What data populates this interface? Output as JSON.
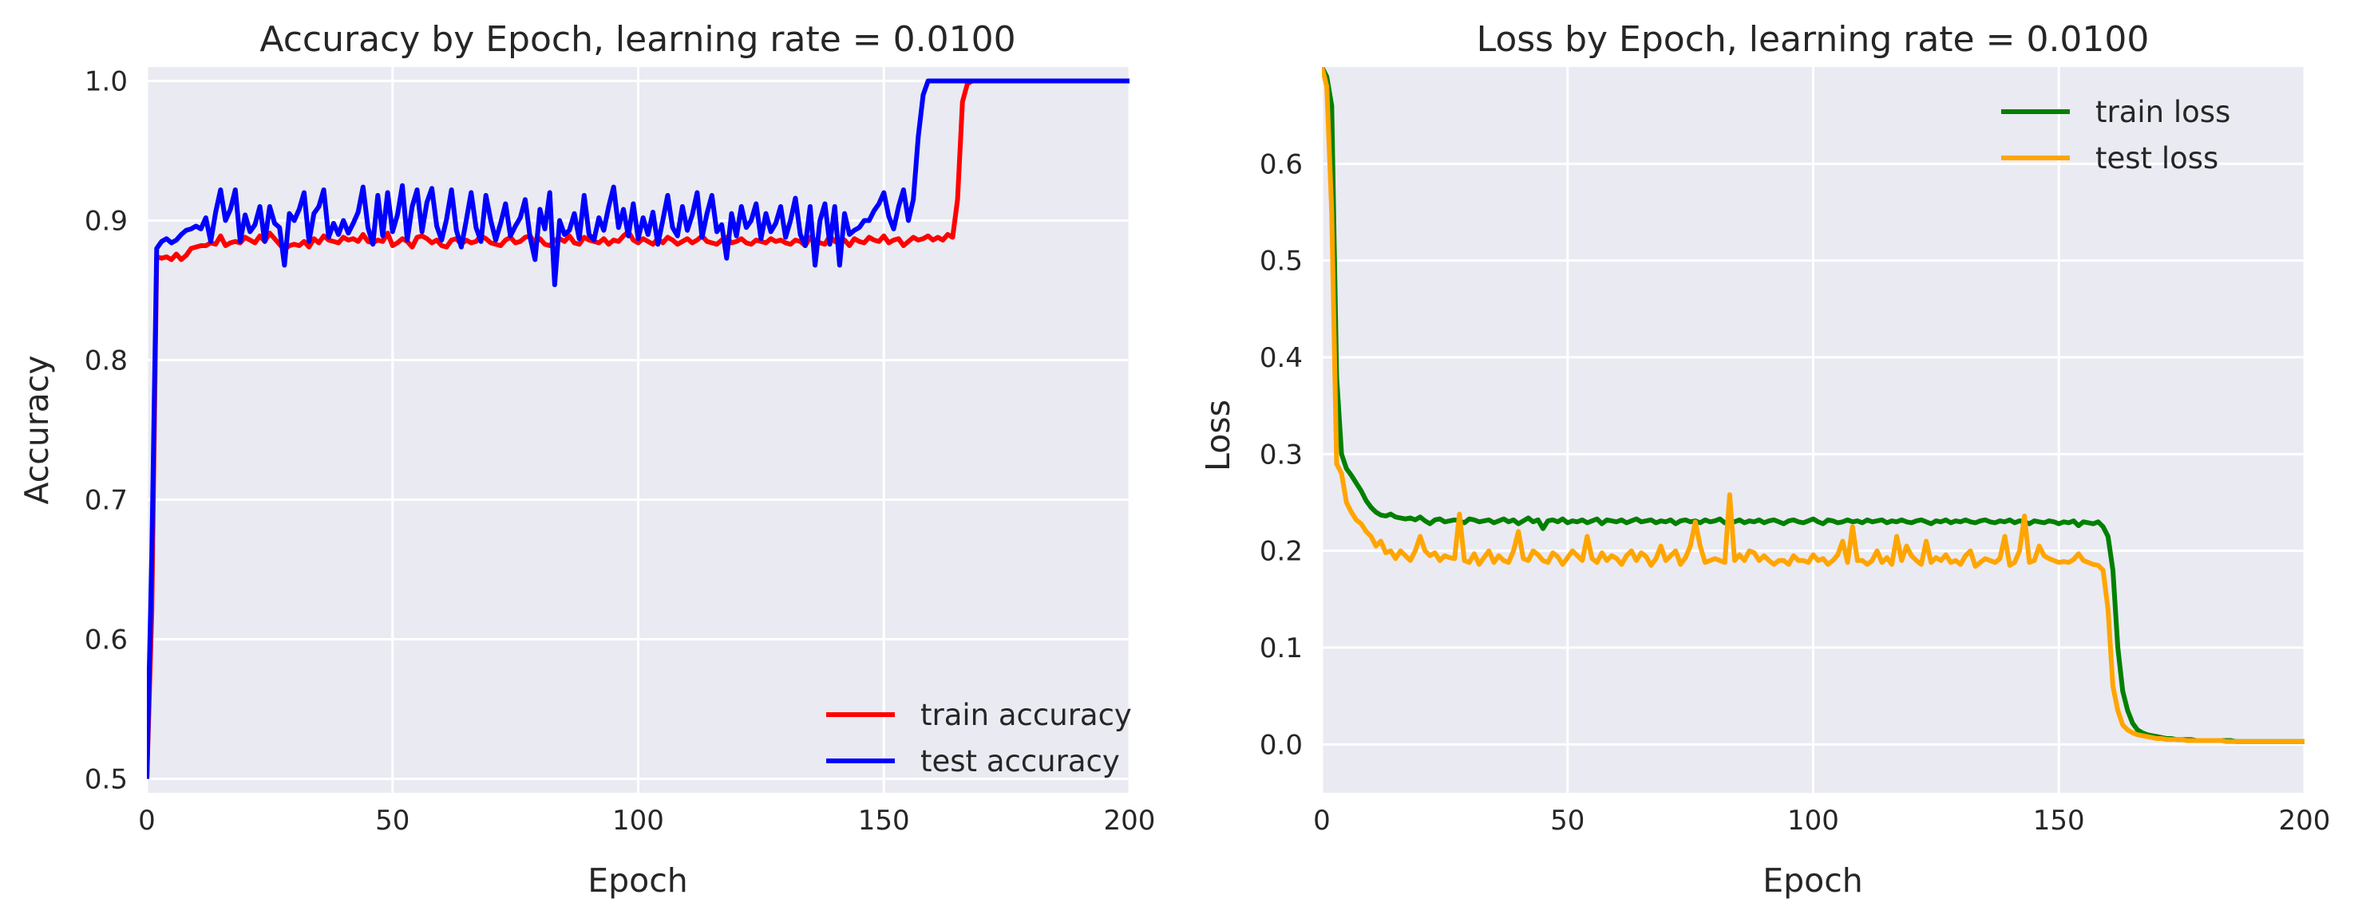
{
  "style": {
    "plot_background": "#eaeaf2",
    "grid_color": "#ffffff",
    "train_accuracy_color": "#ff0000",
    "test_accuracy_color": "#0000ff",
    "train_loss_color": "#008000",
    "test_loss_color": "#ffa500"
  },
  "chart_data": [
    {
      "type": "line",
      "title": "Accuracy by Epoch, learning rate = 0.0100",
      "xlabel": "Epoch",
      "ylabel": "Accuracy",
      "xlim": [
        0,
        200
      ],
      "ylim": [
        0.49,
        1.01
      ],
      "xticks": [
        0,
        50,
        100,
        150,
        200
      ],
      "yticks": [
        0.5,
        0.6,
        0.7,
        0.8,
        0.9,
        1.0
      ],
      "ytick_labels": [
        "0.5",
        "0.6",
        "0.7",
        "0.8",
        "0.9",
        "1.0"
      ],
      "grid": true,
      "legend_position": "lower-right",
      "series": [
        {
          "name": "train accuracy",
          "color": "#ff0000",
          "values": [
            0.5,
            0.62,
            0.874,
            0.873,
            0.874,
            0.872,
            0.876,
            0.872,
            0.875,
            0.88,
            0.881,
            0.882,
            0.882,
            0.884,
            0.883,
            0.889,
            0.882,
            0.884,
            0.885,
            0.884,
            0.888,
            0.886,
            0.884,
            0.889,
            0.885,
            0.891,
            0.887,
            0.883,
            0.879,
            0.882,
            0.883,
            0.882,
            0.885,
            0.881,
            0.887,
            0.884,
            0.889,
            0.886,
            0.885,
            0.884,
            0.888,
            0.886,
            0.887,
            0.885,
            0.89,
            0.885,
            0.884,
            0.886,
            0.885,
            0.891,
            0.882,
            0.884,
            0.887,
            0.885,
            0.881,
            0.888,
            0.889,
            0.887,
            0.884,
            0.886,
            0.882,
            0.881,
            0.886,
            0.887,
            0.883,
            0.886,
            0.884,
            0.885,
            0.889,
            0.887,
            0.884,
            0.883,
            0.882,
            0.886,
            0.888,
            0.884,
            0.885,
            0.888,
            0.889,
            0.884,
            0.887,
            0.883,
            0.882,
            0.886,
            0.887,
            0.885,
            0.889,
            0.884,
            0.883,
            0.888,
            0.886,
            0.885,
            0.884,
            0.887,
            0.883,
            0.886,
            0.885,
            0.889,
            0.892,
            0.886,
            0.884,
            0.887,
            0.885,
            0.883,
            0.887,
            0.884,
            0.888,
            0.886,
            0.883,
            0.885,
            0.887,
            0.884,
            0.886,
            0.889,
            0.885,
            0.884,
            0.883,
            0.886,
            0.888,
            0.884,
            0.885,
            0.887,
            0.884,
            0.883,
            0.886,
            0.885,
            0.884,
            0.887,
            0.885,
            0.886,
            0.884,
            0.883,
            0.886,
            0.885,
            0.882,
            0.888,
            0.886,
            0.884,
            0.883,
            0.889,
            0.885,
            0.884,
            0.886,
            0.882,
            0.887,
            0.885,
            0.884,
            0.888,
            0.886,
            0.885,
            0.889,
            0.884,
            0.886,
            0.887,
            0.882,
            0.885,
            0.888,
            0.886,
            0.887,
            0.889,
            0.886,
            0.888,
            0.886,
            0.89,
            0.888,
            0.915,
            0.985,
            0.998,
            1.0,
            1.0,
            1.0,
            1.0,
            1.0,
            1.0,
            1.0,
            1.0,
            1.0,
            1.0,
            1.0,
            1.0,
            1.0,
            1.0,
            1.0,
            1.0,
            1.0,
            1.0,
            1.0,
            1.0,
            1.0,
            1.0,
            1.0,
            1.0,
            1.0,
            1.0,
            1.0,
            1.0,
            1.0,
            1.0,
            1.0,
            1.0,
            1.0,
            1.0,
            1.0,
            1.0,
            1.0,
            1.0,
            1.0
          ]
        },
        {
          "name": "test accuracy",
          "color": "#0000ff",
          "values": [
            0.5,
            0.66,
            0.88,
            0.885,
            0.887,
            0.884,
            0.886,
            0.89,
            0.893,
            0.894,
            0.896,
            0.894,
            0.902,
            0.885,
            0.906,
            0.922,
            0.9,
            0.908,
            0.922,
            0.885,
            0.904,
            0.892,
            0.897,
            0.91,
            0.885,
            0.91,
            0.898,
            0.895,
            0.868,
            0.905,
            0.9,
            0.908,
            0.92,
            0.885,
            0.905,
            0.91,
            0.922,
            0.888,
            0.898,
            0.89,
            0.9,
            0.891,
            0.898,
            0.906,
            0.924,
            0.895,
            0.883,
            0.918,
            0.889,
            0.92,
            0.892,
            0.904,
            0.925,
            0.886,
            0.91,
            0.922,
            0.892,
            0.913,
            0.923,
            0.896,
            0.886,
            0.901,
            0.922,
            0.893,
            0.881,
            0.9,
            0.92,
            0.895,
            0.885,
            0.918,
            0.9,
            0.886,
            0.898,
            0.912,
            0.889,
            0.896,
            0.902,
            0.915,
            0.888,
            0.872,
            0.908,
            0.894,
            0.92,
            0.854,
            0.9,
            0.89,
            0.893,
            0.905,
            0.887,
            0.918,
            0.89,
            0.886,
            0.902,
            0.893,
            0.91,
            0.924,
            0.895,
            0.908,
            0.889,
            0.912,
            0.887,
            0.902,
            0.89,
            0.906,
            0.883,
            0.9,
            0.918,
            0.895,
            0.889,
            0.91,
            0.893,
            0.904,
            0.92,
            0.888,
            0.905,
            0.918,
            0.892,
            0.897,
            0.873,
            0.905,
            0.889,
            0.91,
            0.895,
            0.9,
            0.912,
            0.887,
            0.905,
            0.892,
            0.898,
            0.91,
            0.888,
            0.9,
            0.916,
            0.89,
            0.882,
            0.91,
            0.868,
            0.9,
            0.912,
            0.883,
            0.91,
            0.868,
            0.905,
            0.89,
            0.893,
            0.895,
            0.9,
            0.9,
            0.907,
            0.912,
            0.92,
            0.903,
            0.894,
            0.91,
            0.922,
            0.9,
            0.915,
            0.96,
            0.99,
            1.0,
            1.0,
            1.0,
            1.0,
            1.0,
            1.0,
            1.0,
            1.0,
            1.0,
            1.0,
            1.0,
            1.0,
            1.0,
            1.0,
            1.0,
            1.0,
            1.0,
            1.0,
            1.0,
            1.0,
            1.0,
            1.0,
            1.0,
            1.0,
            1.0,
            1.0,
            1.0,
            1.0,
            1.0,
            1.0,
            1.0,
            1.0,
            1.0,
            1.0,
            1.0,
            1.0,
            1.0,
            1.0,
            1.0,
            1.0,
            1.0,
            1.0,
            1.0,
            1.0,
            1.0,
            1.0,
            1.0
          ]
        }
      ]
    },
    {
      "type": "line",
      "title": "Loss by Epoch, learning rate = 0.0100",
      "xlabel": "Epoch",
      "ylabel": "Loss",
      "xlim": [
        0,
        200
      ],
      "ylim": [
        -0.05,
        0.7
      ],
      "xticks": [
        0,
        50,
        100,
        150,
        200
      ],
      "yticks": [
        0.0,
        0.1,
        0.2,
        0.3,
        0.4,
        0.5,
        0.6
      ],
      "ytick_labels": [
        "0.0",
        "0.1",
        "0.2",
        "0.3",
        "0.4",
        "0.5",
        "0.6"
      ],
      "grid": true,
      "legend_position": "upper-right",
      "series": [
        {
          "name": "train loss",
          "color": "#008000",
          "values": [
            0.7,
            0.69,
            0.66,
            0.38,
            0.3,
            0.285,
            0.278,
            0.27,
            0.262,
            0.252,
            0.245,
            0.24,
            0.237,
            0.236,
            0.238,
            0.235,
            0.234,
            0.233,
            0.234,
            0.232,
            0.235,
            0.231,
            0.228,
            0.232,
            0.233,
            0.23,
            0.231,
            0.232,
            0.231,
            0.229,
            0.233,
            0.232,
            0.23,
            0.231,
            0.232,
            0.229,
            0.231,
            0.233,
            0.23,
            0.232,
            0.228,
            0.231,
            0.234,
            0.23,
            0.232,
            0.223,
            0.231,
            0.232,
            0.23,
            0.233,
            0.229,
            0.231,
            0.23,
            0.232,
            0.229,
            0.231,
            0.233,
            0.228,
            0.232,
            0.231,
            0.23,
            0.232,
            0.229,
            0.231,
            0.233,
            0.23,
            0.231,
            0.232,
            0.229,
            0.231,
            0.23,
            0.232,
            0.228,
            0.231,
            0.232,
            0.23,
            0.231,
            0.229,
            0.232,
            0.23,
            0.231,
            0.233,
            0.229,
            0.231,
            0.23,
            0.232,
            0.229,
            0.231,
            0.23,
            0.232,
            0.229,
            0.231,
            0.232,
            0.23,
            0.228,
            0.231,
            0.232,
            0.23,
            0.229,
            0.231,
            0.233,
            0.23,
            0.228,
            0.232,
            0.231,
            0.229,
            0.23,
            0.232,
            0.23,
            0.231,
            0.229,
            0.232,
            0.23,
            0.231,
            0.232,
            0.229,
            0.231,
            0.23,
            0.232,
            0.23,
            0.229,
            0.231,
            0.232,
            0.23,
            0.228,
            0.231,
            0.23,
            0.232,
            0.229,
            0.231,
            0.23,
            0.232,
            0.23,
            0.229,
            0.231,
            0.232,
            0.23,
            0.229,
            0.231,
            0.23,
            0.232,
            0.229,
            0.231,
            0.23,
            0.228,
            0.231,
            0.23,
            0.229,
            0.231,
            0.23,
            0.228,
            0.23,
            0.229,
            0.231,
            0.226,
            0.23,
            0.229,
            0.228,
            0.23,
            0.225,
            0.215,
            0.18,
            0.1,
            0.055,
            0.035,
            0.022,
            0.015,
            0.012,
            0.01,
            0.009,
            0.008,
            0.007,
            0.006,
            0.006,
            0.005,
            0.005,
            0.005,
            0.005,
            0.004,
            0.004,
            0.004,
            0.004,
            0.004,
            0.004,
            0.004,
            0.004,
            0.003,
            0.003,
            0.003,
            0.003,
            0.003,
            0.003,
            0.003,
            0.003,
            0.003,
            0.003,
            0.003,
            0.003,
            0.003,
            0.003,
            0.003,
            0.003,
            0.003,
            0.003,
            0.003,
            0.003,
            0.003,
            0.003
          ]
        },
        {
          "name": "test loss",
          "color": "#ffa500",
          "values": [
            0.7,
            0.68,
            0.55,
            0.29,
            0.28,
            0.25,
            0.24,
            0.232,
            0.228,
            0.22,
            0.215,
            0.205,
            0.21,
            0.198,
            0.2,
            0.192,
            0.2,
            0.195,
            0.19,
            0.2,
            0.215,
            0.2,
            0.195,
            0.198,
            0.19,
            0.195,
            0.193,
            0.192,
            0.238,
            0.19,
            0.188,
            0.197,
            0.186,
            0.193,
            0.2,
            0.188,
            0.195,
            0.19,
            0.188,
            0.2,
            0.22,
            0.192,
            0.19,
            0.2,
            0.196,
            0.19,
            0.188,
            0.198,
            0.194,
            0.186,
            0.193,
            0.2,
            0.195,
            0.19,
            0.215,
            0.192,
            0.188,
            0.198,
            0.19,
            0.195,
            0.192,
            0.186,
            0.195,
            0.2,
            0.19,
            0.198,
            0.194,
            0.185,
            0.192,
            0.205,
            0.19,
            0.195,
            0.2,
            0.186,
            0.193,
            0.205,
            0.23,
            0.205,
            0.188,
            0.19,
            0.192,
            0.19,
            0.188,
            0.258,
            0.19,
            0.196,
            0.19,
            0.2,
            0.198,
            0.19,
            0.195,
            0.19,
            0.186,
            0.19,
            0.19,
            0.186,
            0.195,
            0.19,
            0.19,
            0.188,
            0.196,
            0.19,
            0.192,
            0.186,
            0.19,
            0.196,
            0.21,
            0.188,
            0.225,
            0.19,
            0.19,
            0.186,
            0.19,
            0.2,
            0.188,
            0.193,
            0.186,
            0.215,
            0.19,
            0.205,
            0.195,
            0.19,
            0.186,
            0.21,
            0.188,
            0.193,
            0.19,
            0.196,
            0.188,
            0.19,
            0.186,
            0.195,
            0.2,
            0.184,
            0.188,
            0.192,
            0.19,
            0.188,
            0.192,
            0.215,
            0.185,
            0.188,
            0.2,
            0.236,
            0.188,
            0.19,
            0.205,
            0.195,
            0.192,
            0.19,
            0.188,
            0.189,
            0.188,
            0.191,
            0.197,
            0.19,
            0.188,
            0.186,
            0.185,
            0.18,
            0.14,
            0.06,
            0.035,
            0.02,
            0.015,
            0.012,
            0.01,
            0.009,
            0.008,
            0.007,
            0.006,
            0.006,
            0.005,
            0.005,
            0.005,
            0.005,
            0.004,
            0.004,
            0.004,
            0.004,
            0.004,
            0.004,
            0.004,
            0.004,
            0.003,
            0.003,
            0.003,
            0.003,
            0.003,
            0.003,
            0.003,
            0.003,
            0.003,
            0.003,
            0.003,
            0.003,
            0.003,
            0.003,
            0.003,
            0.003,
            0.003,
            0.003,
            0.003,
            0.003,
            0.003,
            0.003,
            0.003
          ]
        }
      ]
    }
  ]
}
